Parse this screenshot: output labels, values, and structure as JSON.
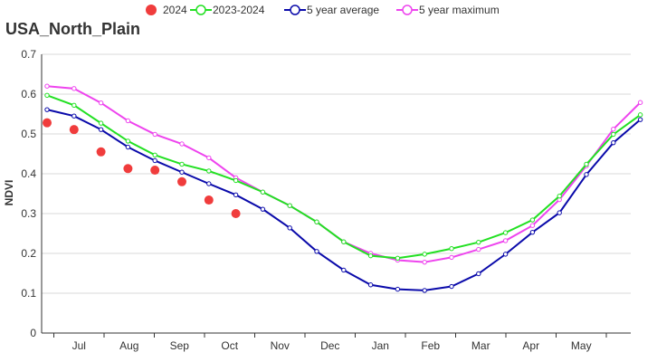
{
  "chart_data": {
    "type": "line",
    "title": "USA_North_Plain",
    "ylabel": "NDVI",
    "xlabel": "",
    "ylim": [
      0,
      0.7
    ],
    "yticks": [
      0,
      0.1,
      0.2,
      0.3,
      0.4,
      0.5,
      0.6,
      0.7
    ],
    "ytick_labels": [
      "0",
      "0.1",
      "0.2",
      "0.3",
      "0.4",
      "0.5",
      "0.6",
      "0.7"
    ],
    "month_labels": [
      "Jul",
      "Aug",
      "Sep",
      "Oct",
      "Nov",
      "Dec",
      "Jan",
      "Feb",
      "Mar",
      "Apr",
      "May"
    ],
    "grid": true,
    "legend_position": "top",
    "series": [
      {
        "name": "2024",
        "style": "dots",
        "color": "#f03c3c",
        "values": [
          0.528,
          0.511,
          0.455,
          0.413,
          0.409,
          0.38,
          0.334,
          0.3
        ]
      },
      {
        "name": "2023-2024",
        "style": "line",
        "color": "#22e022",
        "values": [
          0.597,
          0.572,
          0.527,
          0.482,
          0.447,
          0.424,
          0.407,
          0.383,
          0.354,
          0.32,
          0.279,
          0.229,
          0.194,
          0.188,
          0.198,
          0.212,
          0.228,
          0.252,
          0.284,
          0.344,
          0.424,
          0.499,
          0.548
        ]
      },
      {
        "name": "5 year average",
        "style": "line",
        "color": "#0a0aaa",
        "values": [
          0.561,
          0.545,
          0.511,
          0.467,
          0.433,
          0.404,
          0.375,
          0.347,
          0.311,
          0.264,
          0.205,
          0.158,
          0.121,
          0.11,
          0.107,
          0.117,
          0.149,
          0.198,
          0.253,
          0.302,
          0.398,
          0.478,
          0.536
        ]
      },
      {
        "name": "5 year maximum",
        "style": "line",
        "color": "#ee44ee",
        "values": [
          0.62,
          0.614,
          0.578,
          0.533,
          0.499,
          0.475,
          0.44,
          0.39,
          0.354,
          0.32,
          0.279,
          0.229,
          0.2,
          0.183,
          0.178,
          0.19,
          0.21,
          0.232,
          0.27,
          0.335,
          0.42,
          0.512,
          0.579
        ]
      }
    ]
  }
}
